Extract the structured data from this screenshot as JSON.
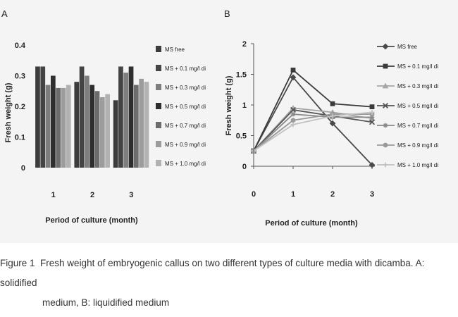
{
  "chart_data": [
    {
      "panel_label": "A",
      "type": "bar",
      "categories": [
        "1",
        "2",
        "3"
      ],
      "series": [
        {
          "name": "MS free",
          "values": [
            0.33,
            0.28,
            0.22
          ]
        },
        {
          "name": "MS + 0.1 mg/l di",
          "values": [
            0.33,
            0.33,
            0.33
          ]
        },
        {
          "name": "MS + 0.3 mg/l di",
          "values": [
            0.27,
            0.3,
            0.31
          ]
        },
        {
          "name": "MS + 0.5 mg/l di",
          "values": [
            0.3,
            0.27,
            0.33
          ]
        },
        {
          "name": "MS + 0.7 mg/l di",
          "values": [
            0.26,
            0.25,
            0.27
          ]
        },
        {
          "name": "MS + 0.9 mg/l di",
          "values": [
            0.26,
            0.23,
            0.29
          ]
        },
        {
          "name": "MS + 1.0 mg/l di",
          "values": [
            0.27,
            0.24,
            0.28
          ]
        }
      ],
      "xlabel": "Period of culture (month)",
      "ylabel": "Fresh weight (g)",
      "ylim": [
        0,
        0.4
      ],
      "yticks": [
        "0",
        "0.1",
        "0.2",
        "0.3",
        "0.4"
      ],
      "grid": false,
      "legend_position": "right"
    },
    {
      "panel_label": "B",
      "type": "line",
      "x": [
        "0",
        "1",
        "2",
        "3"
      ],
      "series": [
        {
          "name": "MS free",
          "values": [
            0.25,
            1.45,
            0.7,
            0.02
          ]
        },
        {
          "name": "MS + 0.1 mg/l di",
          "values": [
            0.25,
            1.57,
            1.02,
            0.97
          ]
        },
        {
          "name": "MS + 0.3 mg/l di",
          "values": [
            0.25,
            0.95,
            0.88,
            0.78
          ]
        },
        {
          "name": "MS + 0.5 mg/l di",
          "values": [
            0.25,
            0.92,
            0.82,
            0.72
          ]
        },
        {
          "name": "MS + 0.7 mg/l di",
          "values": [
            0.25,
            0.85,
            0.8,
            0.8
          ]
        },
        {
          "name": "MS + 0.9 mg/l di",
          "values": [
            0.25,
            0.75,
            0.85,
            0.85
          ]
        },
        {
          "name": "MS + 1.0 mg/l di",
          "values": [
            0.25,
            0.68,
            0.82,
            0.88
          ]
        }
      ],
      "xlabel": "Period of culture (month)",
      "ylabel": "Fresh weight (g)",
      "ylim": [
        0,
        2
      ],
      "yticks": [
        "0",
        "0.5",
        "1",
        "1.5",
        "2"
      ],
      "grid": false,
      "legend_position": "right"
    }
  ],
  "style": {
    "bar_colors": [
      "#3c3c3c",
      "#444444",
      "#7e7e7e",
      "#2e2e2e",
      "#6c6c6c",
      "#9c9c9c",
      "#b2b2b2"
    ],
    "line_colors": [
      "#4a4a4a",
      "#3a3a3a",
      "#a6a6a6",
      "#555555",
      "#8a8a8a",
      "#9a9a9a",
      "#c2c2c2"
    ],
    "markers": [
      "diamond",
      "square",
      "triangle",
      "x",
      "star",
      "circle",
      "plus"
    ]
  },
  "caption": {
    "label": "Figure 1",
    "line1": "Fresh weight of embryogenic callus on two different types of culture media with dicamba. A: solidified",
    "line2": "medium,  B: liquidified medium"
  }
}
